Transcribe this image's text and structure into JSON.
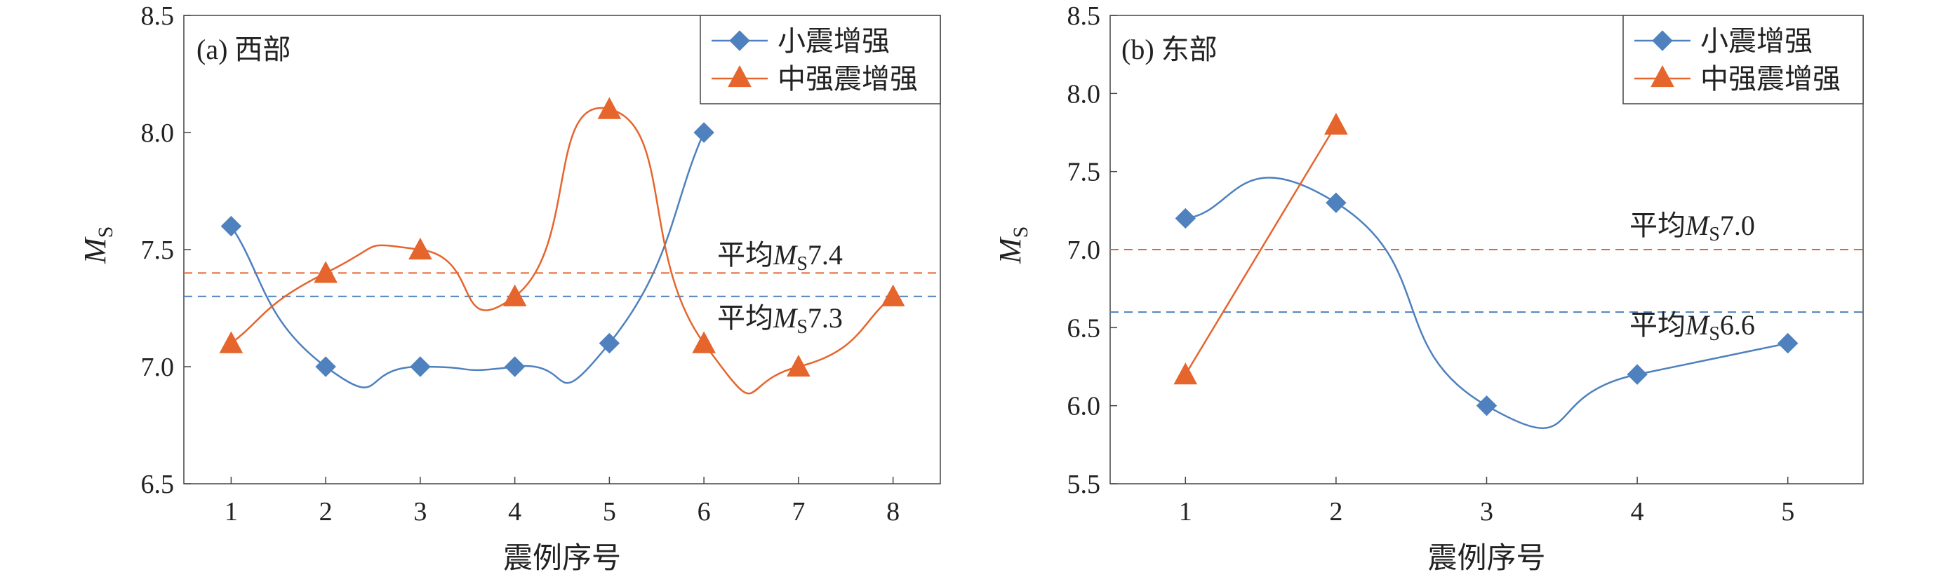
{
  "chart_data": [
    {
      "type": "line",
      "panel_label": "(a) 西部",
      "xlabel": "震例序号",
      "ylabel_main": "M",
      "ylabel_sub": "S",
      "ylim": [
        6.5,
        8.5
      ],
      "yticks": [
        "6.5",
        "7.0",
        "7.5",
        "8.0",
        "8.5"
      ],
      "x": [
        1,
        2,
        3,
        4,
        5,
        6,
        7,
        8
      ],
      "xticks": [
        "1",
        "2",
        "3",
        "4",
        "5",
        "6",
        "7",
        "8"
      ],
      "series": [
        {
          "name": "小震增强",
          "marker": "diamond",
          "color": "#4e81bd",
          "points": [
            [
              1,
              7.6
            ],
            [
              2,
              7.0
            ],
            [
              3,
              7.0
            ],
            [
              4,
              7.0
            ],
            [
              5,
              7.1
            ],
            [
              6,
              8.0
            ]
          ]
        },
        {
          "name": "中强震增强",
          "marker": "triangle",
          "color": "#e5652d",
          "points": [
            [
              1,
              7.1
            ],
            [
              2,
              7.4
            ],
            [
              3,
              7.5
            ],
            [
              4,
              7.3
            ],
            [
              5,
              8.1
            ],
            [
              6,
              7.1
            ],
            [
              7,
              7.0
            ],
            [
              8,
              7.3
            ]
          ]
        }
      ],
      "reference_lines": [
        {
          "value": 7.4,
          "color": "#e5652d",
          "label_prefix": "平均",
          "label_main": "M",
          "label_sub": "S",
          "label_value": "7.4"
        },
        {
          "value": 7.3,
          "color": "#4e81bd",
          "label_prefix": "平均",
          "label_main": "M",
          "label_sub": "S",
          "label_value": "7.3"
        }
      ],
      "legend_position": "top-right",
      "grid": false
    },
    {
      "type": "line",
      "panel_label": "(b) 东部",
      "xlabel": "震例序号",
      "ylabel_main": "M",
      "ylabel_sub": "S",
      "ylim": [
        5.5,
        8.5
      ],
      "yticks": [
        "5.5",
        "6.0",
        "6.5",
        "7.0",
        "7.5",
        "8.0",
        "8.5"
      ],
      "x": [
        1,
        2,
        3,
        4,
        5
      ],
      "xticks": [
        "1",
        "2",
        "3",
        "4",
        "5"
      ],
      "series": [
        {
          "name": "小震增强",
          "marker": "diamond",
          "color": "#4e81bd",
          "points": [
            [
              1,
              7.2
            ],
            [
              2,
              7.3
            ],
            [
              3,
              6.0
            ],
            [
              4,
              6.2
            ],
            [
              5,
              6.4
            ]
          ]
        },
        {
          "name": "中强震增强",
          "marker": "triangle",
          "color": "#e5652d",
          "points": [
            [
              1,
              6.2
            ],
            [
              2,
              7.8
            ]
          ]
        }
      ],
      "reference_lines": [
        {
          "value": 7.0,
          "color": "#e5652d",
          "label_prefix": "平均",
          "label_main": "M",
          "label_sub": "S",
          "label_value": "7.0"
        },
        {
          "value": 6.6,
          "color": "#4e81bd",
          "label_prefix": "平均",
          "label_main": "M",
          "label_sub": "S",
          "label_value": "6.6"
        }
      ],
      "legend_position": "top-right",
      "grid": false
    }
  ]
}
